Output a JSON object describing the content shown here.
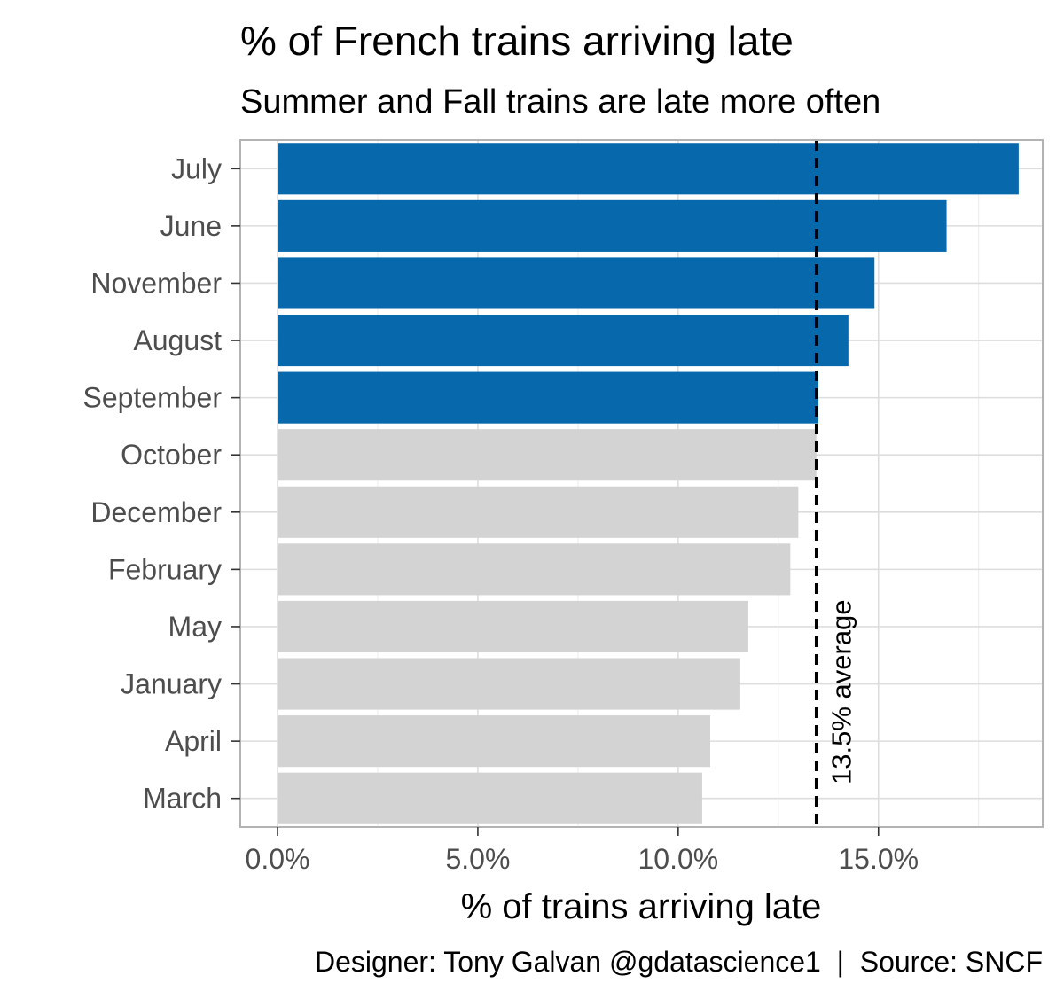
{
  "chart_data": {
    "type": "bar",
    "orientation": "horizontal",
    "title": "% of French trains arriving late",
    "subtitle": "Summer and Fall trains are late more often",
    "xlabel": "% of trains arriving late",
    "ylabel": "",
    "caption": "Designer: Tony Galvan @gdatascience1  |  Source: SNCF",
    "categories": [
      "July",
      "June",
      "November",
      "August",
      "September",
      "October",
      "December",
      "February",
      "May",
      "January",
      "April",
      "March"
    ],
    "values": [
      18.5,
      16.7,
      14.9,
      14.25,
      13.5,
      13.45,
      13.0,
      12.8,
      11.75,
      11.55,
      10.8,
      10.6
    ],
    "highlighted": [
      true,
      true,
      true,
      true,
      true,
      false,
      false,
      false,
      false,
      false,
      false,
      false
    ],
    "xlim": [
      -0.93,
      19.1
    ],
    "xticks": [
      0,
      5,
      10,
      15
    ],
    "xtick_labels": [
      "0.0%",
      "5.0%",
      "10.0%",
      "15.0%"
    ],
    "reference_line": {
      "value": 13.45,
      "label": "13.5% average",
      "style": "dashed"
    },
    "grid": true,
    "legend": "none",
    "colors": {
      "highlight": "#0868AC",
      "default": "#D3D3D3",
      "reference": "#000000",
      "grid": "#DDDDDD",
      "panel_border": "#B3B3B3"
    }
  }
}
